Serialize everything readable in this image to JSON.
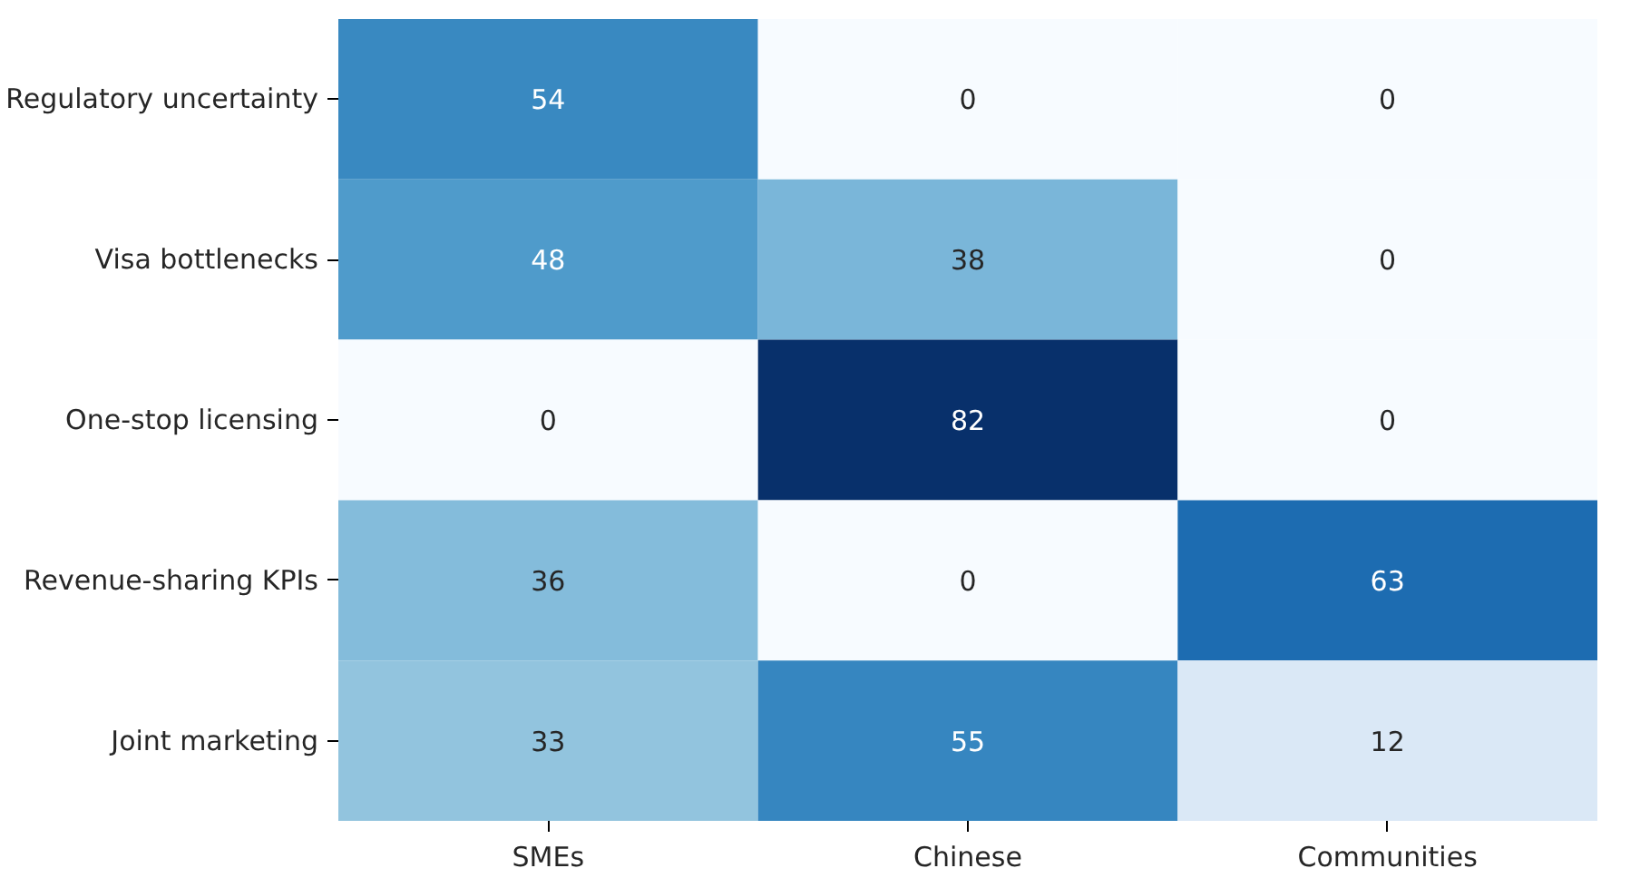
{
  "chart_data": {
    "type": "heatmap",
    "categories": [
      "SMEs",
      "Chinese",
      "Communities"
    ],
    "y_categories": [
      "Regulatory uncertainty",
      "Visa bottlenecks",
      "One-stop licensing",
      "Revenue-sharing KPIs",
      "Joint marketing"
    ],
    "cells": [
      [
        54,
        0,
        0
      ],
      [
        48,
        38,
        0
      ],
      [
        0,
        82,
        0
      ],
      [
        36,
        0,
        63
      ],
      [
        33,
        55,
        12
      ]
    ],
    "data_labels": true
  }
}
